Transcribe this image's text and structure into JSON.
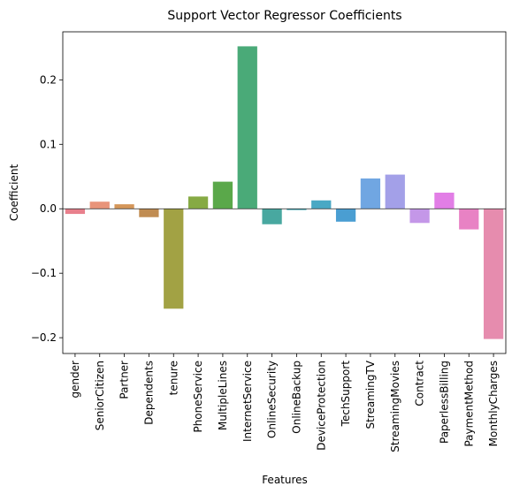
{
  "chart_data": {
    "type": "bar",
    "title": "Support Vector Regressor Coefficients",
    "xlabel": "Features",
    "ylabel": "Coefficient",
    "categories": [
      "gender",
      "SeniorCitizen",
      "Partner",
      "Dependents",
      "tenure",
      "PhoneService",
      "MultipleLines",
      "InternetService",
      "OnlineSecurity",
      "OnlineBackup",
      "DeviceProtection",
      "TechSupport",
      "StreamingTV",
      "StreamingMovies",
      "Contract",
      "PaperlessBilling",
      "PaymentMethod",
      "MonthlyCharges"
    ],
    "values": [
      -0.008,
      0.011,
      0.007,
      -0.013,
      -0.155,
      0.019,
      0.042,
      0.252,
      -0.024,
      -0.002,
      0.013,
      -0.02,
      0.047,
      0.053,
      -0.022,
      0.025,
      -0.032,
      -0.202
    ],
    "colors": [
      "#e8808c",
      "#e8947a",
      "#d4965a",
      "#c08c52",
      "#a2a244",
      "#86aa44",
      "#5aa84a",
      "#4aaa78",
      "#48a8a0",
      "#48a8b4",
      "#4aa8c4",
      "#4a9ed2",
      "#70a6e2",
      "#a3a0e8",
      "#c497e8",
      "#e27ee6",
      "#e882c4",
      "#e68cae"
    ],
    "ylim": [
      -0.2245,
      0.2745
    ],
    "yticks": [
      -0.2,
      -0.1,
      0.0,
      0.1,
      0.2
    ],
    "ytick_labels": [
      "−0.2",
      "−0.1",
      "0.0",
      "0.1",
      "0.2"
    ],
    "grid": false,
    "legend": "none"
  }
}
